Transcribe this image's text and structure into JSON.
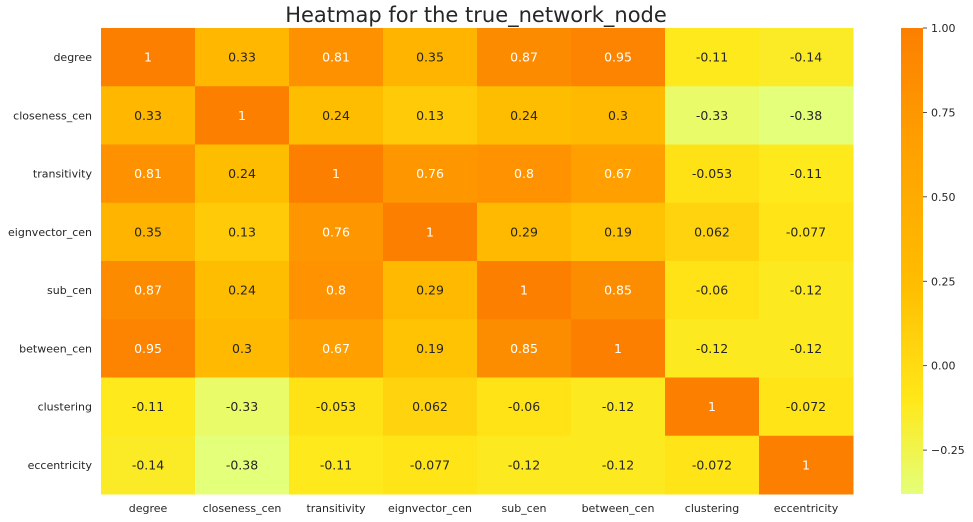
{
  "chart_data": {
    "type": "heatmap",
    "title": "Heatmap for the true_network_node",
    "x_categories": [
      "degree",
      "closeness_cen",
      "transitivity",
      "eignvector_cen",
      "sub_cen",
      "between_cen",
      "clustering",
      "eccentricity"
    ],
    "y_categories": [
      "degree",
      "closeness_cen",
      "transitivity",
      "eignvector_cen",
      "sub_cen",
      "between_cen",
      "clustering",
      "eccentricity"
    ],
    "values": [
      [
        1,
        0.33,
        0.81,
        0.35,
        0.87,
        0.95,
        -0.11,
        -0.14
      ],
      [
        0.33,
        1,
        0.24,
        0.13,
        0.24,
        0.3,
        -0.33,
        -0.38
      ],
      [
        0.81,
        0.24,
        1,
        0.76,
        0.8,
        0.67,
        -0.053,
        -0.11
      ],
      [
        0.35,
        0.13,
        0.76,
        1,
        0.29,
        0.19,
        0.062,
        -0.077
      ],
      [
        0.87,
        0.24,
        0.8,
        0.29,
        1,
        0.85,
        -0.06,
        -0.12
      ],
      [
        0.95,
        0.3,
        0.67,
        0.19,
        0.85,
        1,
        -0.12,
        -0.12
      ],
      [
        -0.11,
        -0.33,
        -0.053,
        0.062,
        -0.06,
        -0.12,
        1,
        -0.072
      ],
      [
        -0.14,
        -0.38,
        -0.11,
        -0.077,
        -0.12,
        -0.12,
        -0.072,
        1
      ]
    ],
    "labels": [
      [
        "1",
        "0.33",
        "0.81",
        "0.35",
        "0.87",
        "0.95",
        "-0.11",
        "-0.14"
      ],
      [
        "0.33",
        "1",
        "0.24",
        "0.13",
        "0.24",
        "0.3",
        "-0.33",
        "-0.38"
      ],
      [
        "0.81",
        "0.24",
        "1",
        "0.76",
        "0.8",
        "0.67",
        "-0.053",
        "-0.11"
      ],
      [
        "0.35",
        "0.13",
        "0.76",
        "1",
        "0.29",
        "0.19",
        "0.062",
        "-0.077"
      ],
      [
        "0.87",
        "0.24",
        "0.8",
        "0.29",
        "1",
        "0.85",
        "-0.06",
        "-0.12"
      ],
      [
        "0.95",
        "0.3",
        "0.67",
        "0.19",
        "0.85",
        "1",
        "-0.12",
        "-0.12"
      ],
      [
        "-0.11",
        "-0.33",
        "-0.053",
        "0.062",
        "-0.06",
        "-0.12",
        "1",
        "-0.072"
      ],
      [
        "-0.14",
        "-0.38",
        "-0.11",
        "-0.077",
        "-0.12",
        "-0.12",
        "-0.072",
        "1"
      ]
    ],
    "colormap": "Wistia",
    "vmin": -0.38,
    "vmax": 1.0,
    "colorbar": {
      "ticks": [
        1.0,
        0.75,
        0.5,
        0.25,
        0.0,
        -0.25
      ],
      "tick_labels": [
        "1.00",
        "0.75",
        "0.50",
        "0.25",
        "0.00",
        "−0.25"
      ]
    },
    "colors": {
      "low": "#e4ff7a",
      "mid_low": "#ffe81a",
      "mid": "#ffbd00",
      "mid_high": "#ffa000",
      "high": "#fc7f00",
      "annotation_light": "#ffffff",
      "annotation_dark": "#262626"
    },
    "grid": false,
    "legend": "colorbar-right"
  }
}
